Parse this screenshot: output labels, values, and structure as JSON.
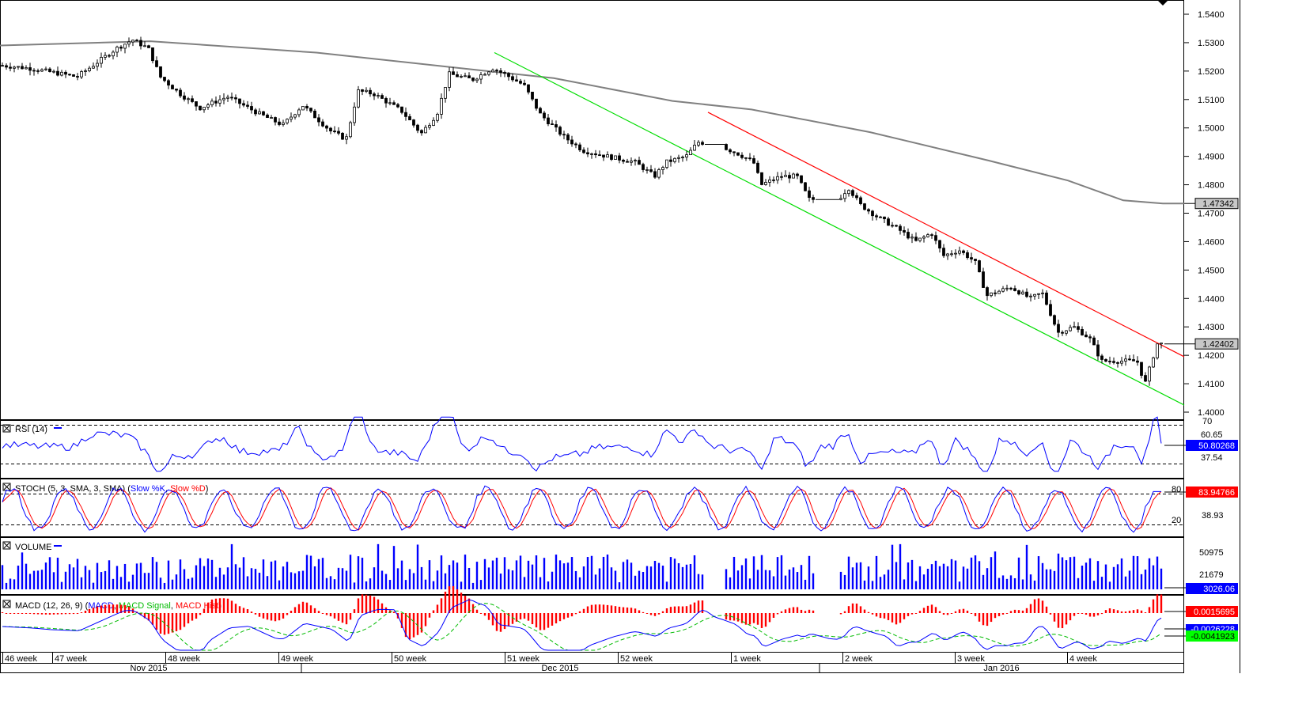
{
  "instrument": "",
  "price_axis": {
    "ticks": [
      "1.5400",
      "1.5300",
      "1.5200",
      "1.5100",
      "1.5000",
      "1.4900",
      "1.4800",
      "1.4700",
      "1.4600",
      "1.4500",
      "1.4400",
      "1.4300",
      "1.4200",
      "1.4100",
      "1.4000"
    ],
    "ma_label": "1.47342",
    "last_label": "1.42402"
  },
  "panels": {
    "rsi": {
      "title": "RSI (14)",
      "levels": [
        "70",
        "60.65",
        "37.54",
        "30"
      ],
      "value_label": "50.80268",
      "color": "#0000ff"
    },
    "stoch": {
      "title_prefix": "STOCH (5, 3, SMA, 3, SMA)",
      "slowk": "Slow %K",
      "slowd": "Slow %D",
      "levels": [
        "80",
        "38.93",
        "20"
      ],
      "value_label": "83.94766"
    },
    "volume": {
      "title": "VOLUME",
      "levels": [
        "50975",
        "21679"
      ],
      "value_label": "3026.06"
    },
    "macd": {
      "title_prefix": "MACD (12, 26, 9)",
      "macd": "MACD",
      "signal": "MACD Signal",
      "hist": "MACD Hist",
      "labels": [
        "0.0015695",
        "-0.0026228",
        "-0.0041923"
      ]
    }
  },
  "time_axis": {
    "weeks": [
      "46 week",
      "47 week",
      "48 week",
      "49 week",
      "50 week",
      "51 week",
      "52 week",
      "1 week",
      "2 week",
      "3 week",
      "4 week"
    ],
    "months": [
      "Nov 2015",
      "Dec 2015",
      "Jan 2016"
    ]
  },
  "colors": {
    "bull": "#ffffff",
    "bear": "#000000",
    "ma": "#808080",
    "upper_channel": "#ff0000",
    "lower_channel": "#00dd00",
    "rsi": "#0000ff",
    "stoch_k": "#0000ff",
    "stoch_d": "#ff0000",
    "volume": "#0000ff",
    "macd": "#0000ff",
    "signal": "#00bb00",
    "hist": "#ff0000"
  },
  "chart_data": {
    "type": "candlestick",
    "price_range": [
      1.395,
      1.545
    ],
    "ma_end": 1.47342,
    "last_price": 1.42402,
    "channel": {
      "upper": [
        [
          895,
          1.5055
        ],
        [
          1497,
          1.4195
        ]
      ],
      "lower": [
        [
          625,
          1.5265
        ],
        [
          1497,
          1.4025
        ]
      ]
    },
    "waypoints": [
      [
        3,
        1.522
      ],
      [
        40,
        1.521
      ],
      [
        100,
        1.518
      ],
      [
        150,
        1.528
      ],
      [
        170,
        1.531
      ],
      [
        190,
        1.528
      ],
      [
        205,
        1.518
      ],
      [
        230,
        1.512
      ],
      [
        255,
        1.507
      ],
      [
        290,
        1.511
      ],
      [
        330,
        1.505
      ],
      [
        360,
        1.501
      ],
      [
        385,
        1.508
      ],
      [
        420,
        1.499
      ],
      [
        440,
        1.496
      ],
      [
        455,
        1.513
      ],
      [
        475,
        1.512
      ],
      [
        510,
        1.506
      ],
      [
        535,
        1.498
      ],
      [
        555,
        1.505
      ],
      [
        570,
        1.519
      ],
      [
        600,
        1.517
      ],
      [
        625,
        1.521
      ],
      [
        640,
        1.519
      ],
      [
        665,
        1.515
      ],
      [
        685,
        1.505
      ],
      [
        715,
        1.497
      ],
      [
        740,
        1.492
      ],
      [
        770,
        1.49
      ],
      [
        805,
        1.488
      ],
      [
        830,
        1.483
      ],
      [
        845,
        1.488
      ],
      [
        870,
        1.49
      ],
      [
        885,
        1.495
      ],
      [
        910,
        1.494
      ],
      [
        935,
        1.491
      ],
      [
        955,
        1.488
      ],
      [
        965,
        1.48
      ],
      [
        990,
        1.483
      ],
      [
        1010,
        1.483
      ],
      [
        1025,
        1.475
      ],
      [
        1060,
        1.474
      ],
      [
        1075,
        1.479
      ],
      [
        1090,
        1.473
      ],
      [
        1110,
        1.469
      ],
      [
        1140,
        1.464
      ],
      [
        1160,
        1.46
      ],
      [
        1180,
        1.463
      ],
      [
        1195,
        1.455
      ],
      [
        1215,
        1.457
      ],
      [
        1235,
        1.453
      ],
      [
        1250,
        1.441
      ],
      [
        1280,
        1.444
      ],
      [
        1305,
        1.44
      ],
      [
        1320,
        1.442
      ],
      [
        1340,
        1.428
      ],
      [
        1360,
        1.43
      ],
      [
        1380,
        1.426
      ],
      [
        1395,
        1.418
      ],
      [
        1420,
        1.418
      ],
      [
        1440,
        1.418
      ],
      [
        1450,
        1.41
      ],
      [
        1465,
        1.424
      ],
      [
        1470,
        1.424
      ]
    ],
    "gaps": [
      [
        890,
        916
      ],
      [
        1028,
        1060
      ]
    ],
    "rsi": {
      "levels": [
        70,
        30
      ],
      "last": 50.80268,
      "mark_levels": [
        60.65,
        37.54
      ]
    },
    "stoch": {
      "levels": [
        80,
        20
      ],
      "last": 83.94766,
      "mark_level": 38.93
    },
    "volume": {
      "labels": [
        50975,
        21679
      ],
      "last": 3026.06
    },
    "macd": {
      "hist_last": 0.0015695,
      "macd_last": -0.0026228,
      "signal_last": -0.0041923
    }
  }
}
